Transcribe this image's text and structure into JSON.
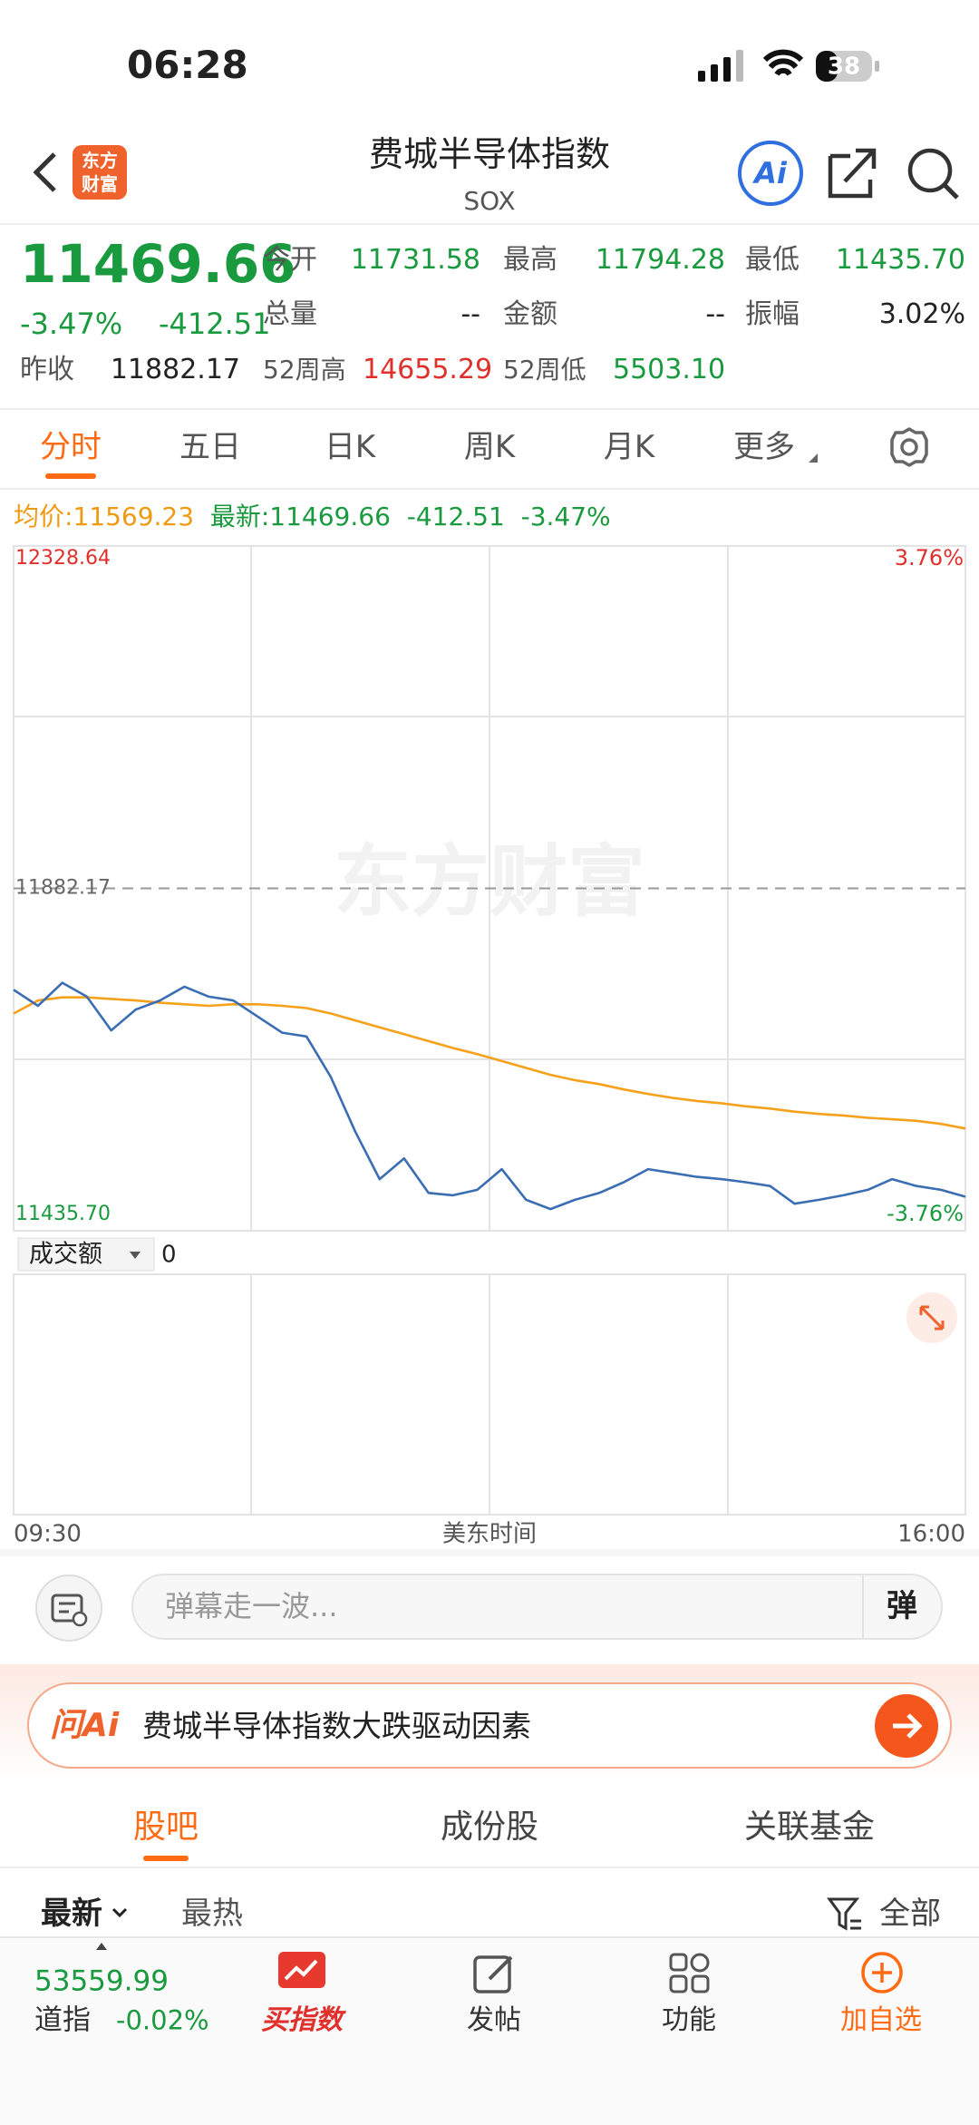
{
  "status_bar": {
    "time": "06:28",
    "battery": "38"
  },
  "header": {
    "logo": [
      "东方",
      "财富"
    ],
    "title": "费城半导体指数",
    "subtitle": "SOX",
    "ai": "Ai"
  },
  "quote": {
    "price": "11469.66",
    "change_pct": "-3.47%",
    "change": "-412.51",
    "prev_close": {
      "label": "昨收",
      "value": "11882.17"
    },
    "fields": [
      {
        "label": "今开",
        "value": "11731.58"
      },
      {
        "label": "最高",
        "value": "11794.28"
      },
      {
        "label": "最低",
        "value": "11435.70"
      },
      {
        "label": "总量",
        "value": "--"
      },
      {
        "label": "金额",
        "value": "--"
      },
      {
        "label": "振幅",
        "value": "3.02%"
      },
      {
        "label": "52周高",
        "value": "14655.29"
      },
      {
        "label": "52周低",
        "value": "5503.10"
      }
    ]
  },
  "tabs": [
    "分时",
    "五日",
    "日K",
    "周K",
    "月K",
    "更多"
  ],
  "summary": {
    "avg_label": "均价:",
    "avg": "11569.23",
    "latest_label": "最新:",
    "latest": "11469.66",
    "change": "-412.51",
    "change_pct": "-3.47%"
  },
  "chart_data": {
    "type": "line",
    "watermark": "东方财富",
    "x": [
      0,
      10,
      20,
      30,
      40,
      50,
      60,
      70,
      80,
      90,
      100,
      110,
      120,
      130,
      140,
      150,
      160,
      170,
      180,
      190,
      200,
      210,
      220,
      230,
      240,
      250,
      260,
      270,
      280,
      290,
      300,
      310,
      320,
      330,
      340,
      350,
      360,
      370,
      380,
      390
    ],
    "xlim": [
      0,
      390
    ],
    "xticks": [
      {
        "value": 0,
        "label": "09:30"
      },
      {
        "value": 390,
        "label": "16:00"
      }
    ],
    "xlabel": "美东时间",
    "ylim": [
      11435.7,
      12328.64
    ],
    "yticks": [
      12328.64,
      11882.17,
      {
        "value": 11435.7,
        "label": "11435.70"
      }
    ],
    "y2lim": [
      -3.76,
      3.76
    ],
    "y2ticks": [
      {
        "value": 3.76,
        "label": "3.76%"
      },
      {
        "value": -3.76,
        "label": "-3.76%"
      }
    ],
    "series": [
      {
        "color": "#3b6db3",
        "values": [
          11750,
          11729,
          11759,
          11741,
          11697,
          11724,
          11736,
          11754,
          11741,
          11736,
          11715,
          11694,
          11689,
          11636,
          11565,
          11503,
          11530,
          11485,
          11482,
          11489,
          11516,
          11476,
          11464,
          11476,
          11485,
          11499,
          11516,
          11511,
          11506,
          11503,
          11499,
          11494,
          11471,
          11476,
          11482,
          11489,
          11503,
          11494,
          11489,
          11480
        ]
      },
      {
        "color": "#f5a11c",
        "values": [
          11719,
          11736,
          11740,
          11740,
          11738,
          11736,
          11733,
          11731,
          11729,
          11731,
          11731,
          11729,
          11726,
          11719,
          11710,
          11701,
          11692,
          11683,
          11674,
          11666,
          11657,
          11648,
          11639,
          11632,
          11627,
          11620,
          11614,
          11609,
          11605,
          11602,
          11598,
          11595,
          11591,
          11588,
          11586,
          11583,
          11581,
          11579,
          11575,
          11569
        ]
      }
    ]
  },
  "volume": {
    "selector": "成交额",
    "value": "0"
  },
  "comment": {
    "placeholder": "弹幕走一波...",
    "button": "弹"
  },
  "ai_banner": {
    "brand": "问Ai",
    "text": "费城半导体指数大跌驱动因素"
  },
  "section_tabs": [
    "股吧",
    "成份股",
    "关联基金"
  ],
  "sort": {
    "latest": "最新",
    "hot": "最热",
    "filter": "全部"
  },
  "bottom_bar": {
    "index_value": "53559.99",
    "index_name": "道指",
    "index_change": "-0.02%",
    "items": [
      "买指数",
      "发帖",
      "功能",
      "加自选"
    ]
  }
}
